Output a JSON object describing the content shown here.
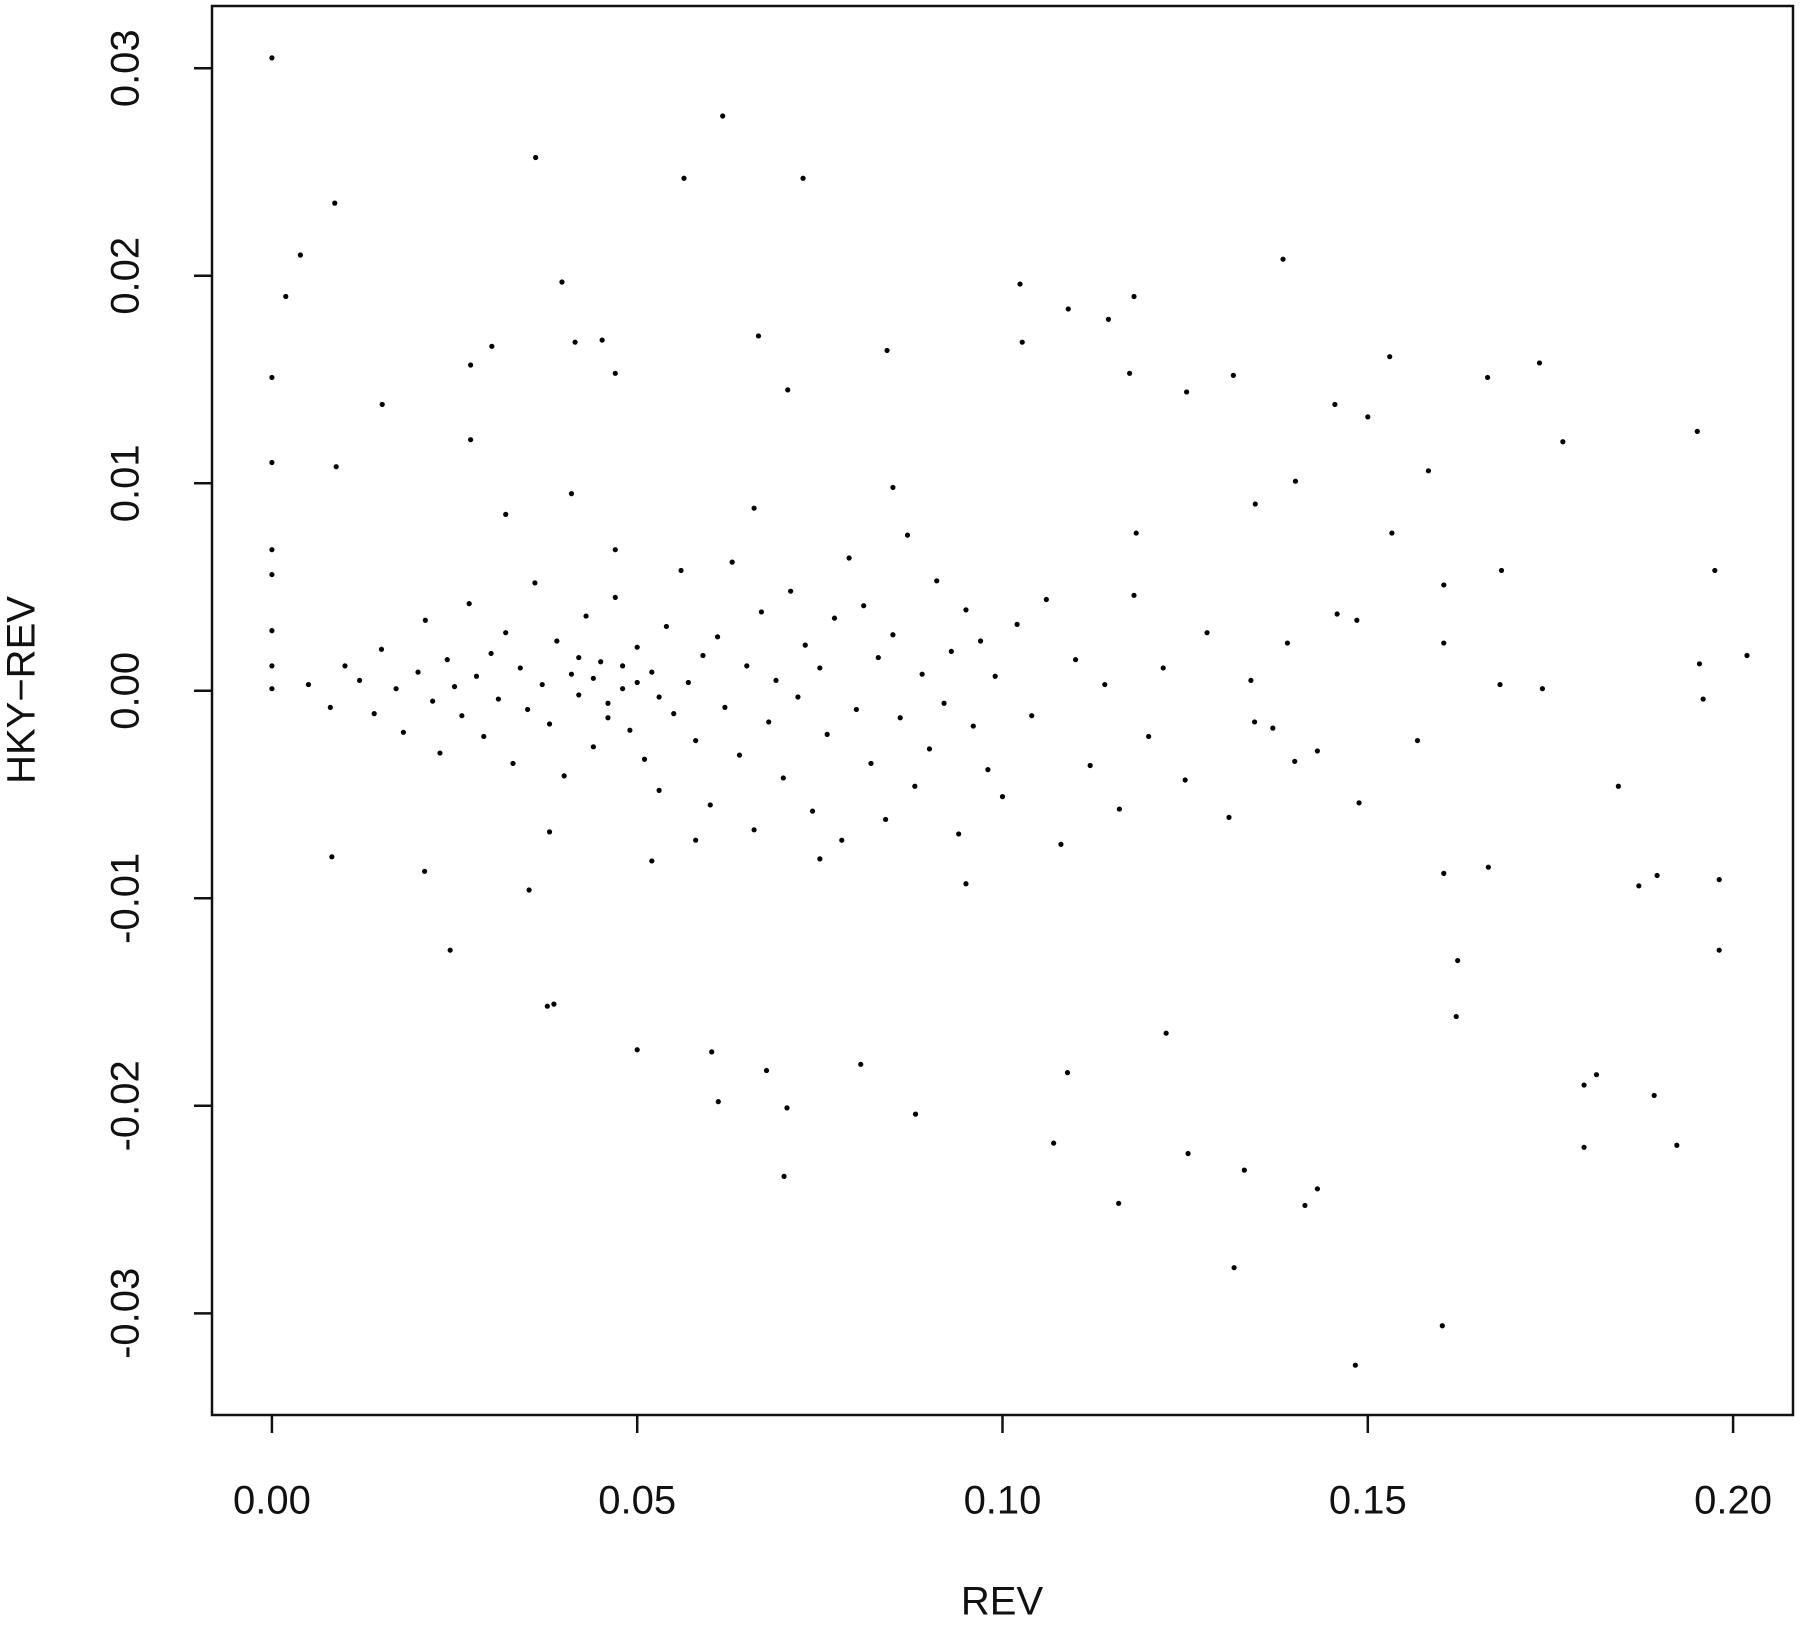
{
  "chart_data": {
    "type": "scatter",
    "x_label": "REV",
    "y_label": "HKY−REV",
    "xlim": [
      -0.0082,
      0.2082
    ],
    "ylim": [
      -0.0349,
      0.033
    ],
    "xticks": [
      {
        "value": 0,
        "label": "0.00"
      },
      0.05,
      {
        "value": 0.1,
        "label": "0.10"
      },
      0.15,
      {
        "value": 0.2,
        "label": "0.20"
      }
    ],
    "yticks": [
      -0.03,
      -0.02,
      -0.01,
      {
        "value": 0,
        "label": "0.00"
      },
      0.01,
      0.02,
      0.03
    ],
    "color": "#000000",
    "series": [
      {
        "x": [
          0,
          0.0617,
          0.0361,
          0.0564,
          0.0727,
          0.0086,
          0.0039,
          0.1384,
          0.0397,
          0.1024,
          0.0019,
          0.118,
          0.109,
          0.1145,
          0.0666,
          0.0415,
          0.0452,
          0.1027,
          0.0301,
          0.0842,
          0.153,
          0.1735,
          0.0272,
          0,
          0.1664,
          0.1316,
          0.1174,
          0.047,
          0.1252,
          0.0706,
          0.0151,
          0.1455,
          0.15,
          0.1951,
          0.1767,
          0.0272,
          0,
          0.0088,
          0.1583,
          0.1975,
          0.2019,
          0.1954,
          0.1959,
          0.1739,
          0.1681,
          0.1843,
          0.1896,
          0.1981,
          0.1871,
          0.1981,
          0.1623,
          0.1665,
          0.1796,
          0.1813,
          0.1892,
          0.1923,
          0.1796,
          0.1602,
          0.1483,
          0.1317,
          0.1331,
          0.1414,
          0.1431,
          0.1254,
          0.1159,
          0.107,
          0.0701,
          0.0705,
          0.0611,
          0.0881,
          0.0677,
          0.0806,
          0.1089,
          0.05,
          0.0602,
          0.0377,
          0.0386,
          0.0244,
          0.0082,
          0.0209,
          0.0352,
          0.1224,
          0.1621,
          0.1604,
          0.1488,
          0.1568,
          0.1431,
          0.1345,
          0.139,
          0.1604,
          0.1458,
          0.1485,
          0.1533,
          0.1604,
          0.1683,
          0.1401,
          0.1346,
          0.1183,
          0,
          0,
          0,
          0,
          0,
          0.005,
          0.008,
          0.01,
          0.012,
          0.014,
          0.015,
          0.017,
          0.018,
          0.02,
          0.021,
          0.022,
          0.023,
          0.024,
          0.025,
          0.026,
          0.027,
          0.028,
          0.029,
          0.03,
          0.031,
          0.032,
          0.033,
          0.034,
          0.035,
          0.036,
          0.037,
          0.038,
          0.039,
          0.04,
          0.041,
          0.042,
          0.043,
          0.044,
          0.045,
          0.046,
          0.047,
          0.048,
          0.049,
          0.05,
          0.051,
          0.052,
          0.053,
          0.054,
          0.055,
          0.056,
          0.057,
          0.058,
          0.059,
          0.06,
          0.061,
          0.062,
          0.063,
          0.064,
          0.065,
          0.066,
          0.067,
          0.068,
          0.069,
          0.07,
          0.071,
          0.072,
          0.073,
          0.074,
          0.075,
          0.076,
          0.077,
          0.078,
          0.079,
          0.08,
          0.081,
          0.082,
          0.083,
          0.084,
          0.085,
          0.086,
          0.087,
          0.088,
          0.089,
          0.09,
          0.091,
          0.092,
          0.093,
          0.094,
          0.095,
          0.096,
          0.097,
          0.098,
          0.099,
          0.1,
          0.102,
          0.104,
          0.106,
          0.108,
          0.11,
          0.112,
          0.114,
          0.116,
          0.118,
          0.12,
          0.122,
          0.125,
          0.128,
          0.131,
          0.134,
          0.137,
          0.14,
          0.032,
          0.041,
          0.052,
          0.066,
          0.075,
          0.085,
          0.095,
          0.047,
          0.058,
          0.038,
          0.044,
          0.046,
          0.05,
          0.048,
          0.042,
          0.053
        ],
        "y": [
          0.0305,
          0.0277,
          0.0257,
          0.0247,
          0.0247,
          0.0235,
          0.021,
          0.0208,
          0.0197,
          0.0196,
          0.019,
          0.019,
          0.0184,
          0.0179,
          0.0171,
          0.0168,
          0.0169,
          0.0168,
          0.0166,
          0.0164,
          0.0161,
          0.0158,
          0.0157,
          0.0151,
          0.0151,
          0.0152,
          0.0153,
          0.0153,
          0.0144,
          0.0145,
          0.0138,
          0.0138,
          0.0132,
          0.0125,
          0.012,
          0.0121,
          0.011,
          0.0108,
          0.0106,
          0.0058,
          0.0017,
          0.0013,
          -0.0004,
          0.0001,
          0.0003,
          -0.0046,
          -0.0089,
          -0.0091,
          -0.0094,
          -0.0125,
          -0.013,
          -0.0085,
          -0.019,
          -0.0185,
          -0.0195,
          -0.0219,
          -0.022,
          -0.0306,
          -0.0325,
          -0.0278,
          -0.0231,
          -0.0248,
          -0.024,
          -0.0223,
          -0.0247,
          -0.0218,
          -0.0234,
          -0.0201,
          -0.0198,
          -0.0204,
          -0.0183,
          -0.018,
          -0.0184,
          -0.0173,
          -0.0174,
          -0.0152,
          -0.0151,
          -0.0125,
          -0.008,
          -0.0087,
          -0.0096,
          -0.0165,
          -0.0157,
          -0.0088,
          -0.0054,
          -0.0024,
          -0.0029,
          -0.0015,
          0.0023,
          0.0023,
          0.0037,
          0.0034,
          0.0076,
          0.0051,
          0.0058,
          0.0101,
          0.009,
          0.0076,
          0.0068,
          0.0056,
          0.0029,
          0.0012,
          0.0001,
          0.0003,
          -0.0008,
          0.0012,
          0.0005,
          -0.0011,
          0.002,
          0.0001,
          -0.002,
          0.0009,
          0.0034,
          -0.0005,
          -0.003,
          0.0015,
          0.0002,
          -0.0012,
          0.0042,
          0.0007,
          -0.0022,
          0.0018,
          -0.0004,
          0.0028,
          -0.0035,
          0.0011,
          -0.0009,
          0.0052,
          0.0003,
          -0.0016,
          0.0024,
          -0.0041,
          0.0008,
          -0.0002,
          0.0036,
          -0.0027,
          0.0014,
          -0.0006,
          0.0045,
          0.0001,
          -0.0019,
          0.0021,
          -0.0033,
          0.0009,
          -0.0048,
          0.0031,
          -0.0011,
          0.0058,
          0.0004,
          -0.0024,
          0.0017,
          -0.0055,
          0.0026,
          -0.0008,
          0.0062,
          -0.0031,
          0.0012,
          -0.0067,
          0.0038,
          -0.0015,
          0.0005,
          -0.0042,
          0.0048,
          -0.0003,
          0.0022,
          -0.0058,
          0.0011,
          -0.0021,
          0.0035,
          -0.0072,
          0.0064,
          -0.0009,
          0.0041,
          -0.0035,
          0.0016,
          -0.0062,
          0.0027,
          -0.0013,
          0.0075,
          -0.0046,
          0.0008,
          -0.0028,
          0.0053,
          -0.0006,
          0.0019,
          -0.0069,
          0.0039,
          -0.0017,
          0.0024,
          -0.0038,
          0.0007,
          -0.0051,
          0.0032,
          -0.0012,
          0.0044,
          -0.0074,
          0.0015,
          -0.0036,
          0.0003,
          -0.0057,
          0.0046,
          -0.0022,
          0.0011,
          -0.0043,
          0.0028,
          -0.0061,
          0.0005,
          -0.0018,
          -0.0034,
          0.0085,
          0.0095,
          -0.0082,
          0.0088,
          -0.0081,
          0.0098,
          -0.0093,
          0.0068,
          -0.0072,
          -0.0068,
          0.0006,
          -0.0013,
          0.0004,
          0.0012,
          0.0016,
          -0.0003
        ]
      }
    ]
  }
}
